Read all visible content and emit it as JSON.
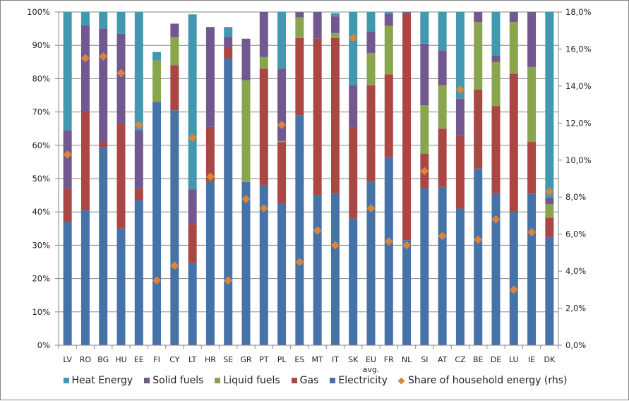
{
  "chart_data": {
    "type": "bar",
    "stacked": true,
    "title": "",
    "xlabel": "",
    "ylabel": "",
    "y2label": "",
    "ylim": [
      0,
      100
    ],
    "y2lim": [
      0,
      18
    ],
    "yticks": [
      "0%",
      "10%",
      "20%",
      "30%",
      "40%",
      "50%",
      "60%",
      "70%",
      "80%",
      "90%",
      "100%"
    ],
    "y2ticks": [
      "0,0%",
      "2,0%",
      "4,0%",
      "6,0%",
      "8,0%",
      "10,0%",
      "12,0%",
      "14,0%",
      "16,0%",
      "18,0%"
    ],
    "grid": true,
    "legend_position": "bottom",
    "categories": [
      "LV",
      "RO",
      "BG",
      "HU",
      "EE",
      "FI",
      "CY",
      "LT",
      "HR",
      "SE",
      "GR",
      "PT",
      "PL",
      "ES",
      "MT",
      "IT",
      "SK",
      "EU avg.",
      "FR",
      "NL",
      "SI",
      "AT",
      "CZ",
      "BE",
      "DE",
      "LU",
      "IE",
      "DK"
    ],
    "series": [
      {
        "name": "Electricity",
        "color": "#4572A7",
        "axis": "left",
        "values": [
          37,
          40.5,
          59.5,
          35,
          43.5,
          73,
          70.5,
          24.8,
          49,
          86,
          49,
          48,
          42.5,
          69,
          45,
          45.5,
          38,
          49,
          56.5,
          31.5,
          47,
          47.5,
          41,
          53,
          45.5,
          40,
          45.5,
          32.5
        ]
      },
      {
        "name": "Gas",
        "color": "#AA4643",
        "axis": "left",
        "values": [
          10,
          29.5,
          1.5,
          31.5,
          3.5,
          0,
          13.5,
          11.5,
          16.5,
          3.5,
          0,
          35,
          18.5,
          23.2,
          47,
          46.7,
          27.5,
          29,
          24.8,
          68,
          10.5,
          17.5,
          22,
          23.7,
          26.3,
          41.5,
          15.5,
          5.8
        ]
      },
      {
        "name": "Liquid fuels",
        "color": "#89A54E",
        "axis": "left",
        "values": [
          0,
          0,
          0,
          0,
          0,
          12.5,
          8.5,
          0,
          0,
          0,
          30.5,
          3.5,
          0.3,
          6.2,
          0,
          1.5,
          0,
          9.7,
          14.5,
          0,
          14.5,
          13,
          0,
          20.3,
          13.2,
          15.5,
          22.5,
          4
        ]
      },
      {
        "name": "Solid fuels",
        "color": "#71588F",
        "axis": "left",
        "values": [
          17.5,
          26,
          34,
          27,
          17.5,
          0,
          4,
          10.5,
          30,
          3,
          12.5,
          13.5,
          21.7,
          1.5,
          8,
          5,
          12.5,
          6.5,
          3.7,
          0.5,
          18.5,
          10.5,
          11,
          3,
          2,
          3,
          16.5,
          2
        ]
      },
      {
        "name": "Heat Energy",
        "color": "#4198AF",
        "axis": "left",
        "values": [
          35.5,
          4,
          5,
          6.5,
          35.5,
          2.5,
          0,
          52.5,
          0,
          3,
          0,
          0,
          17,
          0,
          0,
          1,
          22,
          5.8,
          0.5,
          0,
          9.5,
          11.5,
          26,
          0,
          13,
          0,
          0,
          55.7
        ]
      },
      {
        "name": "Share of household energy (rhs)",
        "color": "#DB843D",
        "axis": "right",
        "marker": "diamond",
        "values": [
          10.3,
          15.5,
          15.6,
          14.7,
          11.9,
          3.5,
          4.3,
          11.2,
          9.1,
          3.5,
          7.9,
          7.4,
          11.9,
          4.5,
          6.2,
          5.4,
          16.6,
          7.4,
          5.6,
          5.4,
          9.4,
          5.9,
          13.8,
          5.7,
          6.8,
          3.0,
          6.1,
          8.3
        ]
      }
    ]
  },
  "legend": {
    "items": [
      {
        "label": "Heat Energy",
        "color": "#4198AF",
        "marker": "square"
      },
      {
        "label": "Solid fuels",
        "color": "#71588F",
        "marker": "square"
      },
      {
        "label": "Liquid fuels",
        "color": "#89A54E",
        "marker": "square"
      },
      {
        "label": "Gas",
        "color": "#AA4643",
        "marker": "square"
      },
      {
        "label": "Electricity",
        "color": "#4572A7",
        "marker": "square"
      },
      {
        "label": "Share of household energy (rhs)",
        "color": "#DB843D",
        "marker": "diamond"
      }
    ]
  }
}
